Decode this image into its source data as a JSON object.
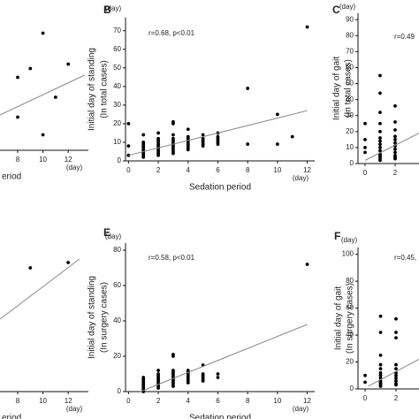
{
  "chart_data": [
    {
      "type": "scatter",
      "xlabel": "eriod",
      "x_unit": "(day)",
      "xlim": [
        6.6,
        13.6
      ],
      "ylim": [
        0,
        60
      ],
      "xticks": [
        8,
        10,
        12
      ],
      "x": [
        8,
        9,
        10,
        12,
        11,
        8,
        10
      ],
      "values": [
        33,
        37,
        53,
        39,
        24,
        15,
        7
      ],
      "color": "#000000",
      "fit": {
        "x": [
          6.6,
          13.3
        ],
        "values": [
          16,
          34
        ],
        "color": "#888888"
      }
    },
    {
      "type": "scatter",
      "label": "B",
      "ylabel": [
        "Initial day of standing",
        "(In total cases)"
      ],
      "xlabel": "Sedation period",
      "x_unit": "(day)",
      "y_unit": "(day)",
      "annotation": "r=0.68, p<0.01",
      "xlim": [
        -0.2,
        12.5
      ],
      "ylim": [
        0,
        77
      ],
      "xticks": [
        0,
        2,
        4,
        6,
        8,
        10,
        12
      ],
      "yticks": [
        0,
        10,
        20,
        30,
        40,
        50,
        60,
        70
      ],
      "x": [
        0,
        0,
        0,
        1,
        1,
        1,
        1,
        1,
        1,
        1,
        1,
        1,
        1,
        2,
        2,
        2,
        2,
        2,
        2,
        2,
        2,
        2,
        2,
        2,
        3,
        3,
        3,
        3,
        3,
        3,
        3,
        3,
        3,
        3,
        3,
        3,
        4,
        4,
        4,
        4,
        4,
        4,
        4,
        4,
        4,
        5,
        5,
        5,
        5,
        5,
        5,
        6,
        6,
        6,
        6,
        6,
        6,
        8,
        8,
        10,
        10,
        11,
        12
      ],
      "values": [
        20,
        8,
        3,
        14,
        10,
        9,
        8,
        7,
        6,
        5,
        4,
        3,
        2,
        15,
        12,
        11,
        10,
        9,
        8,
        7,
        6,
        5,
        4,
        3,
        21,
        20,
        14,
        12,
        11,
        10,
        9,
        8,
        7,
        6,
        5,
        4,
        17,
        13,
        12,
        11,
        10,
        9,
        8,
        7,
        6,
        14,
        12,
        11,
        10,
        9,
        8,
        15,
        13,
        12,
        11,
        10,
        9,
        39,
        9,
        25,
        9,
        13,
        72
      ],
      "color": "#000000",
      "fit": {
        "x": [
          0,
          12
        ],
        "values": [
          3,
          27
        ],
        "color": "#888888"
      }
    },
    {
      "type": "scatter",
      "label": "C",
      "ylabel": [
        "Initial day of gait",
        "(In total cases)"
      ],
      "y_unit": "(day)",
      "annotation": "r=0.49",
      "xlim": [
        -0.47,
        3.59
      ],
      "ylim": [
        0,
        94
      ],
      "xticks": [
        0,
        2
      ],
      "yticks": [
        0,
        10,
        20,
        30,
        40,
        50,
        60,
        70,
        80,
        90
      ],
      "x": [
        0,
        0,
        0,
        0,
        1,
        1,
        1,
        1,
        1,
        1,
        1,
        1,
        1,
        1,
        1,
        1,
        1,
        1,
        1,
        2,
        2,
        2,
        2,
        2,
        2,
        2,
        2,
        2,
        2,
        2,
        2
      ],
      "values": [
        25,
        15,
        10,
        7,
        55,
        44,
        32,
        25,
        20,
        16,
        14,
        12,
        10,
        8,
        6,
        5,
        4,
        3,
        2,
        36,
        26,
        21,
        17,
        15,
        13,
        11,
        9,
        7,
        5,
        4,
        3
      ],
      "color": "#000000",
      "fit": {
        "x": [
          0,
          3.59
        ],
        "values": [
          2,
          19
        ],
        "color": "#888888"
      }
    },
    {
      "type": "scatter",
      "xlabel": "eriod",
      "x_unit": "(day)",
      "xlim": [
        6.6,
        13.6
      ],
      "ylim": [
        0,
        84
      ],
      "xticks": [
        8,
        10,
        12
      ],
      "x": [
        9,
        12
      ],
      "values": [
        70,
        73
      ],
      "color": "#000000",
      "fit": {
        "x": [
          6.6,
          12.9
        ],
        "values": [
          41,
          75
        ],
        "color": "#888888"
      }
    },
    {
      "type": "scatter",
      "label": "E",
      "ylabel": [
        "Initial day of standing",
        "(In surgery cases)"
      ],
      "xlabel": "Sedation period",
      "x_unit": "(day)",
      "y_unit": "(day)",
      "annotation": "r=0.58, p<0.01",
      "xlim": [
        -0.2,
        12.5
      ],
      "ylim": [
        0,
        84
      ],
      "xticks": [
        0,
        2,
        4,
        6,
        8,
        10,
        12
      ],
      "yticks": [
        0,
        20,
        40,
        60,
        80
      ],
      "x": [
        1,
        1,
        1,
        1,
        1,
        1,
        1,
        1,
        1,
        2,
        2,
        2,
        2,
        2,
        2,
        2,
        2,
        2,
        2,
        3,
        3,
        3,
        3,
        3,
        3,
        3,
        3,
        3,
        3,
        3,
        3,
        4,
        4,
        4,
        4,
        4,
        4,
        4,
        4,
        5,
        5,
        5,
        5,
        5,
        5,
        6,
        6,
        12
      ],
      "values": [
        8,
        7,
        6,
        5,
        4,
        3,
        2,
        1,
        0,
        12,
        10,
        9,
        8,
        7,
        6,
        5,
        4,
        3,
        2,
        21,
        20,
        12,
        11,
        10,
        9,
        8,
        7,
        6,
        5,
        4,
        3,
        12,
        11,
        10,
        9,
        8,
        7,
        6,
        5,
        15,
        10,
        9,
        8,
        7,
        6,
        10,
        8,
        72
      ],
      "color": "#000000",
      "fit": {
        "x": [
          0.8,
          12
        ],
        "values": [
          0,
          38
        ],
        "color": "#888888"
      }
    },
    {
      "type": "scatter",
      "label": "F",
      "ylabel": [
        "Initial day of gait",
        "(In surgery cases)"
      ],
      "y_unit": "(day)",
      "annotation": "r=0.45,",
      "xlim": [
        -0.46,
        3.49
      ],
      "ylim": [
        0,
        105
      ],
      "xticks": [
        0,
        2
      ],
      "yticks": [
        0,
        20,
        40,
        60,
        80,
        100
      ],
      "x": [
        0,
        0,
        1,
        1,
        1,
        1,
        1,
        1,
        1,
        1,
        1,
        1,
        1,
        1,
        1,
        2,
        2,
        2,
        2,
        2,
        2,
        2,
        2,
        2,
        2,
        2
      ],
      "values": [
        10,
        5,
        54,
        42,
        25,
        18,
        15,
        12,
        10,
        8,
        6,
        5,
        4,
        3,
        2,
        52,
        42,
        38,
        18,
        15,
        12,
        10,
        8,
        6,
        4,
        3
      ],
      "color": "#000000",
      "fit": {
        "x": [
          0.2,
          3.49
        ],
        "values": [
          2,
          22
        ],
        "color": "#888888"
      }
    }
  ]
}
